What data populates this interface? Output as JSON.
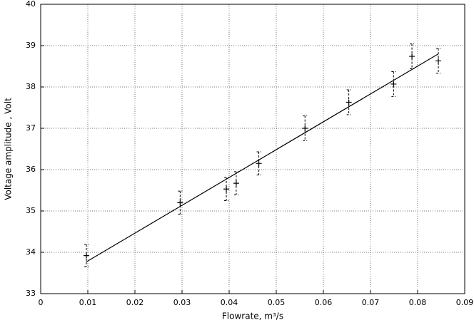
{
  "chart_data": {
    "type": "scatter",
    "x_label": "Flowrate, m³/s",
    "y_label": "Voltage amplitude , Volt",
    "xlim": [
      0,
      0.09
    ],
    "ylim": [
      33,
      40
    ],
    "xticks": [
      0,
      0.01,
      0.02,
      0.03,
      0.04,
      0.05,
      0.06,
      0.07,
      0.08,
      0.09
    ],
    "yticks": [
      33,
      34,
      35,
      36,
      37,
      38,
      39,
      40
    ],
    "grid": true,
    "series": [
      {
        "color": "#000000",
        "x": [
          0.0097,
          0.0296,
          0.0394,
          0.0415,
          0.0463,
          0.0561,
          0.0654,
          0.0749,
          0.0788,
          0.0844
        ],
        "values": [
          33.92,
          35.2,
          35.53,
          35.67,
          36.15,
          37.0,
          37.63,
          38.07,
          38.74,
          38.63
        ],
        "errors": [
          0.27,
          0.28,
          0.28,
          0.28,
          0.28,
          0.3,
          0.3,
          0.3,
          0.3,
          0.3
        ]
      }
    ],
    "fit": {
      "color": "#000000",
      "x": [
        0.0097,
        0.0844
      ],
      "values": [
        33.77,
        38.8
      ]
    }
  }
}
